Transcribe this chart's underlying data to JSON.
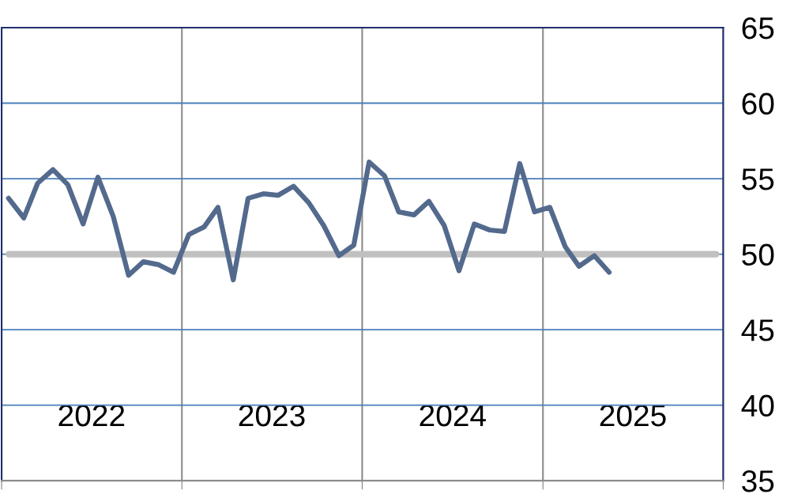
{
  "chart_data": {
    "type": "line",
    "x": [
      "2022-01-15",
      "2022-02-15",
      "2022-03-15",
      "2022-04-15",
      "2022-05-15",
      "2022-06-15",
      "2022-07-15",
      "2022-08-15",
      "2022-09-15",
      "2022-10-15",
      "2022-11-15",
      "2022-12-15",
      "2023-01-15",
      "2023-02-15",
      "2023-03-15",
      "2023-04-15",
      "2023-05-15",
      "2023-06-15",
      "2023-07-15",
      "2023-08-15",
      "2023-09-15",
      "2023-10-15",
      "2023-11-15",
      "2023-12-15",
      "2024-01-15",
      "2024-02-15",
      "2024-03-15",
      "2024-04-15",
      "2024-05-15",
      "2024-06-15",
      "2024-07-15",
      "2024-08-15",
      "2024-09-15",
      "2024-10-15",
      "2024-11-15",
      "2024-12-15",
      "2025-01-15",
      "2025-02-15",
      "2025-03-15",
      "2025-04-15",
      "2025-05-15"
    ],
    "series": [
      {
        "color": "#536a8d",
        "values": [
          53.7,
          52.4,
          54.7,
          55.6,
          54.6,
          52.0,
          55.1,
          52.5,
          48.6,
          49.5,
          49.3,
          48.8,
          51.3,
          51.8,
          53.1,
          48.3,
          53.7,
          54.0,
          53.9,
          54.5,
          53.4,
          51.9,
          49.9,
          50.6,
          56.1,
          55.2,
          52.8,
          52.6,
          53.5,
          51.9,
          48.9,
          52.0,
          51.6,
          51.5,
          56.0,
          52.8,
          53.1,
          50.5,
          49.2,
          49.9,
          48.8
        ]
      }
    ],
    "xlim": [
      "2022-01-01",
      "2026-01-01"
    ],
    "xticks": [
      {
        "value": "2022-01-01",
        "label": null
      },
      {
        "value": "2022-07-02",
        "label": "2022"
      },
      {
        "value": "2023-01-01",
        "label": null
      },
      {
        "value": "2023-07-02",
        "label": "2023"
      },
      {
        "value": "2024-01-01",
        "label": null
      },
      {
        "value": "2024-07-02",
        "label": "2024"
      },
      {
        "value": "2025-01-01",
        "label": null
      },
      {
        "value": "2025-07-02",
        "label": "2025"
      },
      {
        "value": "2026-01-01",
        "label": null
      }
    ],
    "ylim": [
      35,
      65
    ],
    "yticks": [
      35,
      40,
      45,
      50,
      55,
      60,
      65
    ],
    "ref_lines": [
      {
        "axis": "y",
        "value": 50,
        "color": "#c0c0c0"
      }
    ],
    "grid": true,
    "marker": "none",
    "line_style": "solid",
    "legend": false
  }
}
